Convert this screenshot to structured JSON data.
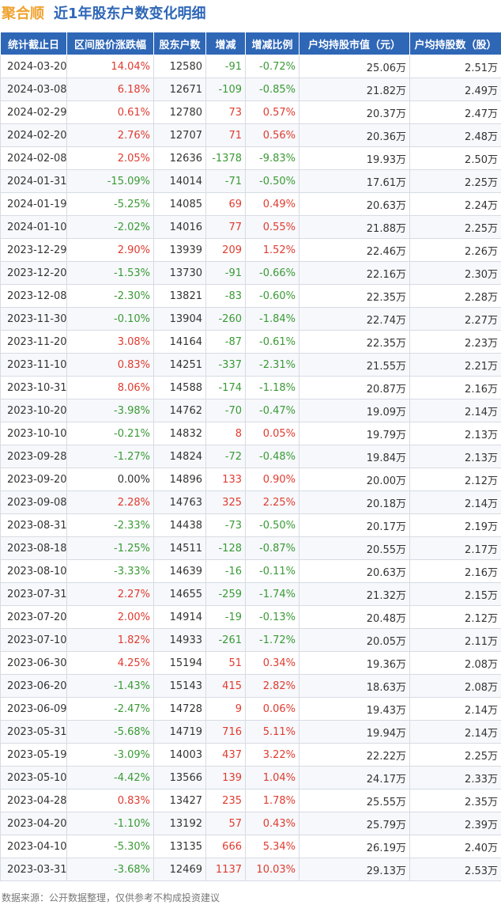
{
  "header": {
    "stock_name": "聚合顺",
    "subtitle": "近1年股东户数变化明细"
  },
  "table": {
    "columns": [
      "统计截止日",
      "区间股价涨跌幅",
      "股东户数",
      "增减",
      "增减比例",
      "户均持股市值（元）",
      "户均持股数（股）"
    ],
    "rows": [
      [
        "2024-03-20",
        "14.04%",
        "12580",
        "-91",
        "-0.72%",
        "25.06万",
        "2.51万"
      ],
      [
        "2024-03-08",
        "6.18%",
        "12671",
        "-109",
        "-0.85%",
        "21.82万",
        "2.49万"
      ],
      [
        "2024-02-29",
        "0.61%",
        "12780",
        "73",
        "0.57%",
        "20.37万",
        "2.47万"
      ],
      [
        "2024-02-20",
        "2.76%",
        "12707",
        "71",
        "0.56%",
        "20.36万",
        "2.48万"
      ],
      [
        "2024-02-08",
        "2.05%",
        "12636",
        "-1378",
        "-9.83%",
        "19.93万",
        "2.50万"
      ],
      [
        "2024-01-31",
        "-15.09%",
        "14014",
        "-71",
        "-0.50%",
        "17.61万",
        "2.25万"
      ],
      [
        "2024-01-19",
        "-5.25%",
        "14085",
        "69",
        "0.49%",
        "20.63万",
        "2.24万"
      ],
      [
        "2024-01-10",
        "-2.02%",
        "14016",
        "77",
        "0.55%",
        "21.88万",
        "2.25万"
      ],
      [
        "2023-12-29",
        "2.90%",
        "13939",
        "209",
        "1.52%",
        "22.46万",
        "2.26万"
      ],
      [
        "2023-12-20",
        "-1.53%",
        "13730",
        "-91",
        "-0.66%",
        "22.16万",
        "2.30万"
      ],
      [
        "2023-12-08",
        "-2.30%",
        "13821",
        "-83",
        "-0.60%",
        "22.35万",
        "2.28万"
      ],
      [
        "2023-11-30",
        "-0.10%",
        "13904",
        "-260",
        "-1.84%",
        "22.74万",
        "2.27万"
      ],
      [
        "2023-11-20",
        "3.08%",
        "14164",
        "-87",
        "-0.61%",
        "22.35万",
        "2.23万"
      ],
      [
        "2023-11-10",
        "0.83%",
        "14251",
        "-337",
        "-2.31%",
        "21.55万",
        "2.21万"
      ],
      [
        "2023-10-31",
        "8.06%",
        "14588",
        "-174",
        "-1.18%",
        "20.87万",
        "2.16万"
      ],
      [
        "2023-10-20",
        "-3.98%",
        "14762",
        "-70",
        "-0.47%",
        "19.09万",
        "2.14万"
      ],
      [
        "2023-10-10",
        "-0.21%",
        "14832",
        "8",
        "0.05%",
        "19.79万",
        "2.13万"
      ],
      [
        "2023-09-28",
        "-1.27%",
        "14824",
        "-72",
        "-0.48%",
        "19.84万",
        "2.13万"
      ],
      [
        "2023-09-20",
        "0.00%",
        "14896",
        "133",
        "0.90%",
        "20.00万",
        "2.12万"
      ],
      [
        "2023-09-08",
        "2.28%",
        "14763",
        "325",
        "2.25%",
        "20.18万",
        "2.14万"
      ],
      [
        "2023-08-31",
        "-2.33%",
        "14438",
        "-73",
        "-0.50%",
        "20.17万",
        "2.19万"
      ],
      [
        "2023-08-18",
        "-1.25%",
        "14511",
        "-128",
        "-0.87%",
        "20.55万",
        "2.17万"
      ],
      [
        "2023-08-10",
        "-3.33%",
        "14639",
        "-16",
        "-0.11%",
        "20.63万",
        "2.16万"
      ],
      [
        "2023-07-31",
        "2.27%",
        "14655",
        "-259",
        "-1.74%",
        "21.32万",
        "2.15万"
      ],
      [
        "2023-07-20",
        "2.00%",
        "14914",
        "-19",
        "-0.13%",
        "20.48万",
        "2.12万"
      ],
      [
        "2023-07-10",
        "1.82%",
        "14933",
        "-261",
        "-1.72%",
        "20.05万",
        "2.11万"
      ],
      [
        "2023-06-30",
        "4.25%",
        "15194",
        "51",
        "0.34%",
        "19.36万",
        "2.08万"
      ],
      [
        "2023-06-20",
        "-1.43%",
        "15143",
        "415",
        "2.82%",
        "18.63万",
        "2.08万"
      ],
      [
        "2023-06-09",
        "-2.47%",
        "14728",
        "9",
        "0.06%",
        "19.43万",
        "2.14万"
      ],
      [
        "2023-05-31",
        "-5.68%",
        "14719",
        "716",
        "5.11%",
        "19.94万",
        "2.14万"
      ],
      [
        "2023-05-19",
        "-3.09%",
        "14003",
        "437",
        "3.22%",
        "22.22万",
        "2.25万"
      ],
      [
        "2023-05-10",
        "-4.42%",
        "13566",
        "139",
        "1.04%",
        "24.17万",
        "2.33万"
      ],
      [
        "2023-04-28",
        "0.83%",
        "13427",
        "235",
        "1.78%",
        "25.55万",
        "2.35万"
      ],
      [
        "2023-04-20",
        "-1.10%",
        "13192",
        "57",
        "0.43%",
        "25.79万",
        "2.39万"
      ],
      [
        "2023-04-10",
        "-5.30%",
        "13135",
        "666",
        "5.34%",
        "26.19万",
        "2.40万"
      ],
      [
        "2023-03-31",
        "-3.68%",
        "12469",
        "1137",
        "10.03%",
        "29.13万",
        "2.53万"
      ]
    ]
  },
  "footer": {
    "source": "数据来源：公开数据整理，仅供参考不构成投资建议"
  },
  "colors": {
    "header_bg": "#2f67b7",
    "title_stock": "#f0a22e",
    "up": "#e03b2f",
    "down": "#3a9a35"
  }
}
